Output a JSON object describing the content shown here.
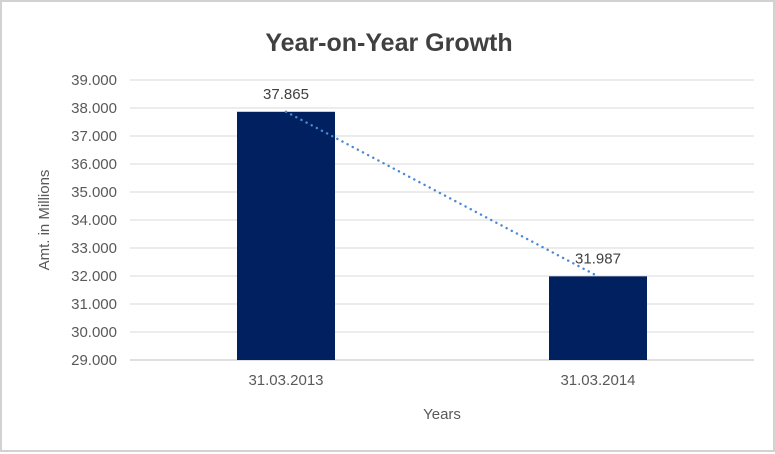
{
  "chart_data": {
    "type": "bar",
    "title": "Year-on-Year Growth",
    "xlabel": "Years",
    "ylabel": "Amt. in Millions",
    "categories": [
      "31.03.2013",
      "31.03.2014"
    ],
    "values": [
      37865,
      31987
    ],
    "value_labels": [
      "37.865",
      "31.987"
    ],
    "series_count": 1,
    "ylim": [
      29000,
      39000
    ],
    "y_tick_step": 1000,
    "y_ticks": [
      {
        "value": 39000,
        "label": "39.000"
      },
      {
        "value": 38000,
        "label": "38.000"
      },
      {
        "value": 37000,
        "label": "37.000"
      },
      {
        "value": 36000,
        "label": "36.000"
      },
      {
        "value": 35000,
        "label": "35.000"
      },
      {
        "value": 34000,
        "label": "34.000"
      },
      {
        "value": 33000,
        "label": "33.000"
      },
      {
        "value": 32000,
        "label": "32.000"
      },
      {
        "value": 31000,
        "label": "31.000"
      },
      {
        "value": 30000,
        "label": "30.000"
      },
      {
        "value": 29000,
        "label": "29.000"
      }
    ],
    "grid": true,
    "legend": false,
    "bar_color": "#002060",
    "gridline_color": "#d9d9d9",
    "axis_line_color": "#bfbfbf",
    "trendline": {
      "style": "dotted",
      "color": "#4a89d6",
      "from_value": 37865,
      "to_value": 31987
    }
  },
  "window": {
    "background_color": "#ffffff",
    "border_color": "#d2d2d2"
  }
}
